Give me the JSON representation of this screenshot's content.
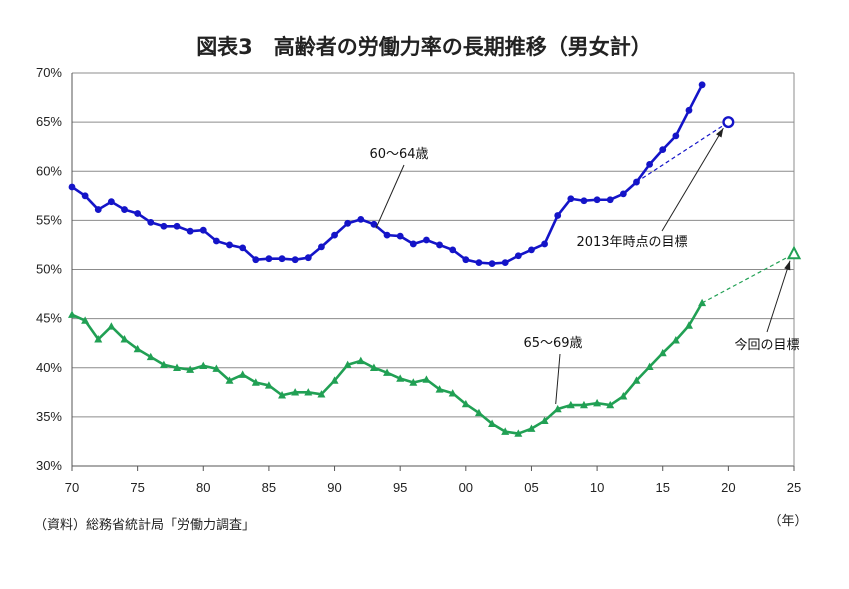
{
  "chart_data": {
    "type": "line",
    "title": "図表3　高齢者の労働力率の長期推移（男女計）",
    "x_unit_label": "（年）",
    "source": "（資料）総務省統計局「労働力調査」",
    "ylim": [
      30,
      70
    ],
    "y_ticks": [
      "30%",
      "35%",
      "40%",
      "45%",
      "50%",
      "55%",
      "60%",
      "65%",
      "70%"
    ],
    "x_ticks": [
      {
        "year": 1970,
        "label": "70"
      },
      {
        "year": 1975,
        "label": "75"
      },
      {
        "year": 1980,
        "label": "80"
      },
      {
        "year": 1985,
        "label": "85"
      },
      {
        "year": 1990,
        "label": "90"
      },
      {
        "year": 1995,
        "label": "95"
      },
      {
        "year": 2000,
        "label": "00"
      },
      {
        "year": 2005,
        "label": "05"
      },
      {
        "year": 2010,
        "label": "10"
      },
      {
        "year": 2015,
        "label": "15"
      },
      {
        "year": 2020,
        "label": "20"
      },
      {
        "year": 2025,
        "label": "25"
      }
    ],
    "grid": true,
    "x_years": [
      1970,
      1971,
      1972,
      1973,
      1974,
      1975,
      1976,
      1977,
      1978,
      1979,
      1980,
      1981,
      1982,
      1983,
      1984,
      1985,
      1986,
      1987,
      1988,
      1989,
      1990,
      1991,
      1992,
      1993,
      1994,
      1995,
      1996,
      1997,
      1998,
      1999,
      2000,
      2001,
      2002,
      2003,
      2004,
      2005,
      2006,
      2007,
      2008,
      2009,
      2010,
      2011,
      2012,
      2013,
      2014,
      2015,
      2016,
      2017,
      2018
    ],
    "series": [
      {
        "name": "60～64歳",
        "color": "#1414c8",
        "marker": "circle",
        "values": [
          58.4,
          57.5,
          56.1,
          56.9,
          56.1,
          55.7,
          54.8,
          54.4,
          54.4,
          53.9,
          54.0,
          52.9,
          52.5,
          52.2,
          51.0,
          51.1,
          51.1,
          51.0,
          51.2,
          52.3,
          53.5,
          54.7,
          55.1,
          54.6,
          53.5,
          53.4,
          52.6,
          53.0,
          52.5,
          52.0,
          51.0,
          50.7,
          50.6,
          50.7,
          51.4,
          52.0,
          52.6,
          55.5,
          57.2,
          57.0,
          57.1,
          57.1,
          57.7,
          58.9,
          60.7,
          62.2,
          63.6,
          66.2,
          68.8
        ],
        "target": {
          "from_year": 2013,
          "year": 2020,
          "value": 65.0,
          "label": "2013年時点の目標"
        }
      },
      {
        "name": "65～69歳",
        "color": "#21a054",
        "marker": "triangle",
        "values": [
          45.4,
          44.8,
          42.9,
          44.2,
          42.9,
          41.9,
          41.1,
          40.3,
          40.0,
          39.8,
          40.2,
          39.9,
          38.7,
          39.3,
          38.5,
          38.2,
          37.2,
          37.5,
          37.5,
          37.3,
          38.7,
          40.3,
          40.7,
          40.0,
          39.5,
          38.9,
          38.5,
          38.8,
          37.8,
          37.4,
          36.3,
          35.4,
          34.3,
          33.5,
          33.3,
          33.8,
          34.6,
          35.8,
          36.2,
          36.2,
          36.4,
          36.2,
          37.1,
          38.7,
          40.1,
          41.5,
          42.8,
          44.3,
          46.6
        ],
        "target": {
          "from_year": 2018,
          "year": 2025,
          "value": 51.6,
          "label": "今回の目標"
        }
      }
    ]
  }
}
